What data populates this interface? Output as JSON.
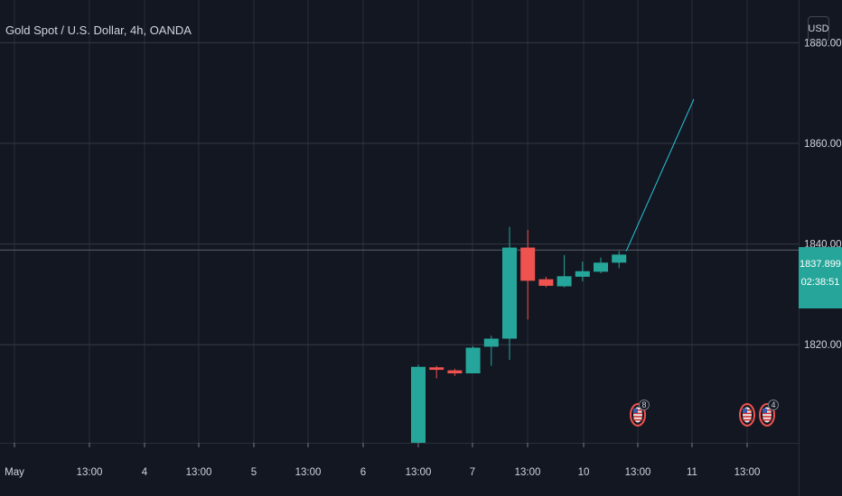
{
  "header": {
    "symbol_title": "Gold Spot / U.S. Dollar, 4h, OANDA",
    "currency_button": "USD"
  },
  "last_price": {
    "value": "1837.899",
    "countdown": "02:38:51"
  },
  "events": [
    {
      "at": "13:00 (10)",
      "count": "8"
    },
    {
      "at": "13:00 (11)",
      "count": ""
    },
    {
      "at": "after 13:00 (11)",
      "count": "4"
    }
  ],
  "colors": {
    "background": "#131722",
    "up": "#26a69a",
    "down": "#ef5350",
    "grid": "#2a2e39",
    "projection_line": "#26c6da"
  },
  "chart_data": {
    "type": "candlestick",
    "title": "Gold Spot / U.S. Dollar, 4h, OANDA",
    "xlabel": "",
    "ylabel": "",
    "ylim": [
      1800.5,
      1888.5
    ],
    "y_ticks": [
      "1820.000",
      "1840.000",
      "1860.000",
      "1880.000"
    ],
    "x_ticks": [
      "May",
      "13:00",
      "4",
      "13:00",
      "5",
      "13:00",
      "6",
      "13:00",
      "7",
      "13:00",
      "10",
      "13:00",
      "11",
      "13:00"
    ],
    "grid": true,
    "candles": [
      {
        "slot": 0,
        "open": 1800.5,
        "high": 1816.0,
        "low": 1800.5,
        "close": 1815.6
      },
      {
        "slot": 1,
        "open": 1815.5,
        "high": 1815.8,
        "low": 1813.3,
        "close": 1815.0
      },
      {
        "slot": 2,
        "open": 1814.9,
        "high": 1815.2,
        "low": 1813.8,
        "close": 1814.3
      },
      {
        "slot": 3,
        "open": 1814.3,
        "high": 1819.7,
        "low": 1814.3,
        "close": 1819.4
      },
      {
        "slot": 4,
        "open": 1819.6,
        "high": 1821.8,
        "low": 1815.8,
        "close": 1821.2
      },
      {
        "slot": 5,
        "open": 1821.2,
        "high": 1843.4,
        "low": 1817.0,
        "close": 1839.3
      },
      {
        "slot": 6,
        "open": 1839.3,
        "high": 1842.8,
        "low": 1825.0,
        "close": 1832.7
      },
      {
        "slot": 7,
        "open": 1833.0,
        "high": 1833.5,
        "low": 1831.4,
        "close": 1831.7
      },
      {
        "slot": 8,
        "open": 1831.6,
        "high": 1837.8,
        "low": 1831.4,
        "close": 1833.6
      },
      {
        "slot": 9,
        "open": 1833.5,
        "high": 1836.5,
        "low": 1832.6,
        "close": 1834.6
      },
      {
        "slot": 10,
        "open": 1834.5,
        "high": 1837.3,
        "low": 1834.2,
        "close": 1836.3
      },
      {
        "slot": 11,
        "open": 1836.3,
        "high": 1838.6,
        "low": 1835.2,
        "close": 1837.9
      }
    ],
    "projection": {
      "from_slot": 11,
      "from_value": 1838.6,
      "to_slot": 15.1,
      "to_value": 1868.8
    },
    "last_value": 1837.899,
    "horizontal_line": 1838.8
  }
}
